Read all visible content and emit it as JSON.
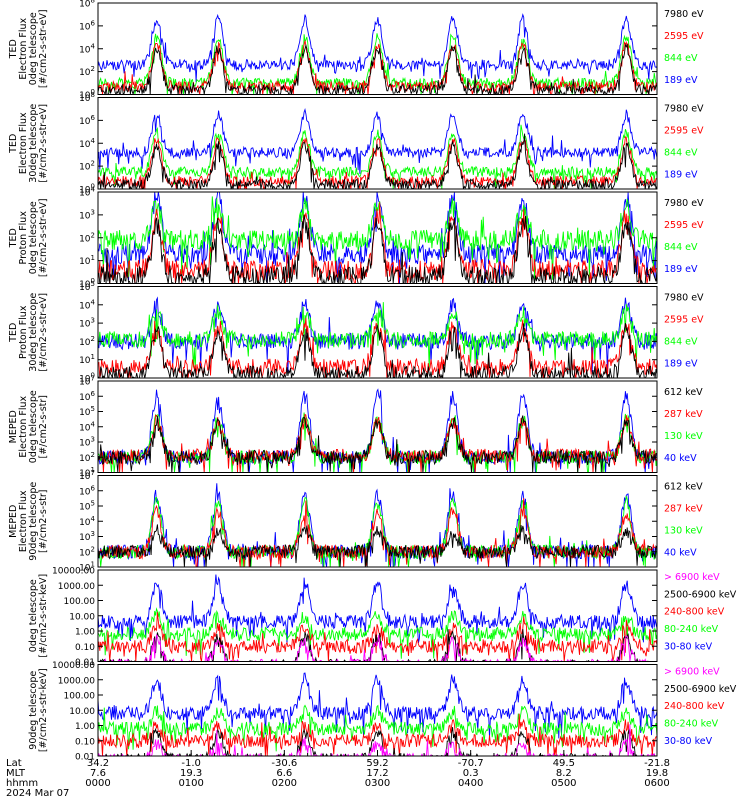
{
  "chart_data": [
    {
      "type": "line",
      "instrument": "TED",
      "ylabel_lines": [
        "TED",
        "Electron Flux",
        "0deg telescope",
        "[#/cm2-s-str-eV]"
      ],
      "log": true,
      "ytick_labels": [
        "10^0",
        "10^2",
        "10^4",
        "10^6",
        "10^8"
      ],
      "ylim_exp": [
        0,
        8
      ],
      "series": [
        {
          "name": "7980 eV",
          "color": "#000000",
          "base": 0.4,
          "peak": 4.0
        },
        {
          "name": "2595 eV",
          "color": "#ff0000",
          "base": 0.7,
          "peak": 4.4
        },
        {
          "name": "844 eV",
          "color": "#00ff00",
          "base": 1.0,
          "peak": 5.0
        },
        {
          "name": "189 eV",
          "color": "#0000ff",
          "base": 2.6,
          "peak": 6.6
        }
      ]
    },
    {
      "type": "line",
      "instrument": "TED",
      "ylabel_lines": [
        "TED",
        "Electron Flux",
        "30deg telescope",
        "[#/cm2-s-str-eV]"
      ],
      "log": true,
      "ytick_labels": [
        "10^0",
        "10^2",
        "10^4",
        "10^6",
        "10^8"
      ],
      "ylim_exp": [
        0,
        8
      ],
      "series": [
        {
          "name": "7980 eV",
          "color": "#000000",
          "base": 0.4,
          "peak": 3.8
        },
        {
          "name": "2595 eV",
          "color": "#ff0000",
          "base": 0.7,
          "peak": 4.3
        },
        {
          "name": "844 eV",
          "color": "#00ff00",
          "base": 1.5,
          "peak": 4.9
        },
        {
          "name": "189 eV",
          "color": "#0000ff",
          "base": 3.2,
          "peak": 6.5
        }
      ]
    },
    {
      "type": "line",
      "instrument": "TED",
      "ylabel_lines": [
        "TED",
        "Proton Flux",
        "0deg telescope",
        "[#/cm2-s-str-eV]"
      ],
      "log": true,
      "ytick_labels": [
        "10^0",
        "10^1",
        "10^2",
        "10^3",
        "10^4"
      ],
      "ylim_exp": [
        0,
        4
      ],
      "series": [
        {
          "name": "7980 eV",
          "color": "#000000",
          "base": 0.3,
          "peak": 2.7
        },
        {
          "name": "2595 eV",
          "color": "#ff0000",
          "base": 0.6,
          "peak": 2.9
        },
        {
          "name": "844 eV",
          "color": "#00ff00",
          "base": 1.9,
          "peak": 3.4
        },
        {
          "name": "189 eV",
          "color": "#0000ff",
          "base": 1.3,
          "peak": 3.8
        }
      ]
    },
    {
      "type": "line",
      "instrument": "TED",
      "ylabel_lines": [
        "TED",
        "Proton Flux",
        "30deg telescope",
        "[#/cm2-s-str-eV]"
      ],
      "log": true,
      "ytick_labels": [
        "10^0",
        "10^1",
        "10^2",
        "10^3",
        "10^4",
        "10^5"
      ],
      "ylim_exp": [
        0,
        5
      ],
      "series": [
        {
          "name": "7980 eV",
          "color": "#000000",
          "base": 0.2,
          "peak": 2.6
        },
        {
          "name": "2595 eV",
          "color": "#ff0000",
          "base": 0.6,
          "peak": 2.9
        },
        {
          "name": "844 eV",
          "color": "#00ff00",
          "base": 2.1,
          "peak": 3.6
        },
        {
          "name": "189 eV",
          "color": "#0000ff",
          "base": 2.0,
          "peak": 4.0
        }
      ]
    },
    {
      "type": "line",
      "instrument": "MEPED",
      "ylabel_lines": [
        "MEPED",
        "Electron Flux",
        "0deg telescope",
        "[#/cm2-s-str]"
      ],
      "log": true,
      "ytick_labels": [
        "10^1",
        "10^2",
        "10^3",
        "10^4",
        "10^5",
        "10^6",
        "10^7"
      ],
      "ylim_exp": [
        1,
        7
      ],
      "series": [
        {
          "name": "612 keV",
          "color": "#000000",
          "base": 2.0,
          "peak": 4.3
        },
        {
          "name": "287 keV",
          "color": "#ff0000",
          "base": 2.1,
          "peak": 4.4
        },
        {
          "name": "130 keV",
          "color": "#00ff00",
          "base": 2.0,
          "peak": 4.6
        },
        {
          "name": "40 keV",
          "color": "#0000ff",
          "base": 2.0,
          "peak": 6.0
        }
      ]
    },
    {
      "type": "line",
      "instrument": "MEPED",
      "ylabel_lines": [
        "MEPED",
        "Electron Flux",
        "90deg telescope",
        "[#/cm2-s-str]"
      ],
      "log": true,
      "ytick_labels": [
        "10^1",
        "10^2",
        "10^3",
        "10^4",
        "10^5",
        "10^6",
        "10^7"
      ],
      "ylim_exp": [
        1,
        7
      ],
      "series": [
        {
          "name": "612 keV",
          "color": "#000000",
          "base": 2.0,
          "peak": 3.4
        },
        {
          "name": "287 keV",
          "color": "#ff0000",
          "base": 2.0,
          "peak": 4.6
        },
        {
          "name": "130 keV",
          "color": "#00ff00",
          "base": 2.0,
          "peak": 5.2
        },
        {
          "name": "40 keV",
          "color": "#0000ff",
          "base": 2.0,
          "peak": 5.7
        }
      ]
    },
    {
      "type": "line",
      "instrument": "MEPED",
      "ylabel_lines": [
        "0deg telescope",
        "[#/cm2-s-str-keV]"
      ],
      "log": true,
      "ytick_labels": [
        "0.01",
        "0.10",
        "1.00",
        "10.00",
        "100.00",
        "1000.00",
        "10000.00"
      ],
      "ylim_exp": [
        -2,
        4
      ],
      "series": [
        {
          "name": "> 6900 keV",
          "color": "#ff00ff",
          "base": -2.3,
          "peak": -0.6
        },
        {
          "name": "2500-6900 keV",
          "color": "#000000",
          "base": -2.3,
          "peak": -0.3
        },
        {
          "name": "240-800 keV",
          "color": "#ff0000",
          "base": -1.0,
          "peak": 0.3
        },
        {
          "name": "80-240 keV",
          "color": "#00ff00",
          "base": -0.2,
          "peak": 1.0
        },
        {
          "name": "30-80 keV",
          "color": "#0000ff",
          "base": 0.6,
          "peak": 3.1
        }
      ]
    },
    {
      "type": "line",
      "instrument": "MEPED",
      "ylabel_lines": [
        "90deg telescope",
        "[#/cm2-s-str-keV]"
      ],
      "log": true,
      "ytick_labels": [
        "0.01",
        "0.10",
        "1.00",
        "10.00",
        "100.00",
        "1000.00",
        "10000.00"
      ],
      "ylim_exp": [
        -2,
        4
      ],
      "series": [
        {
          "name": "> 6900 keV",
          "color": "#ff00ff",
          "base": -2.3,
          "peak": -1.2
        },
        {
          "name": "2500-6900 keV",
          "color": "#000000",
          "base": -2.3,
          "peak": -0.4
        },
        {
          "name": "240-800 keV",
          "color": "#ff0000",
          "base": -1.0,
          "peak": 0.0
        },
        {
          "name": "80-240 keV",
          "color": "#00ff00",
          "base": -0.2,
          "peak": 0.9
        },
        {
          "name": "30-80 keV",
          "color": "#0000ff",
          "base": 0.8,
          "peak": 3.0
        }
      ]
    }
  ],
  "x_axis": {
    "row_labels": [
      "Lat",
      "MLT",
      "hhmm",
      "2024 Mar 07"
    ],
    "lat": [
      "34.2",
      "-1.0",
      "-30.6",
      "59.2",
      "-70.7",
      "49.5",
      "-21.8"
    ],
    "mlt": [
      "7.6",
      "19.3",
      "6.6",
      "17.2",
      "0.3",
      "8.2",
      "19.8"
    ],
    "hhmm": [
      "0000",
      "0100",
      "0200",
      "0300",
      "0400",
      "0500",
      "0600"
    ]
  }
}
